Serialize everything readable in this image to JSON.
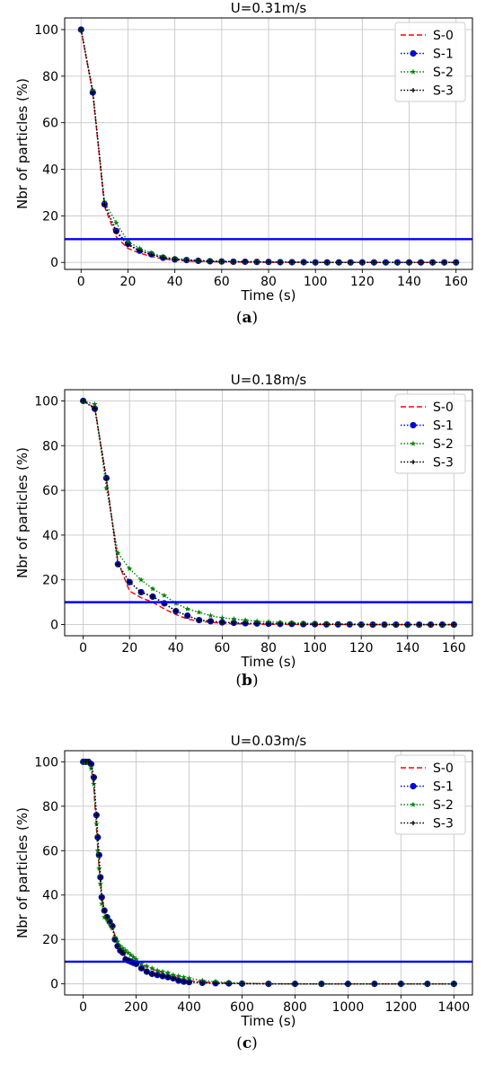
{
  "chart_data": [
    {
      "type": "line",
      "title": "U=0.31m/s",
      "xlabel": "Time (s)",
      "ylabel": "Nbr of particles (%)",
      "xlim": [
        -7,
        167
      ],
      "ylim": [
        -3,
        105
      ],
      "xticks": [
        0,
        20,
        40,
        60,
        80,
        100,
        120,
        140,
        160
      ],
      "yticks": [
        0,
        20,
        40,
        60,
        80,
        100
      ],
      "grid": true,
      "legend": "top-right",
      "threshold": 10,
      "caption": "a",
      "series": [
        {
          "name": "S-0",
          "color": "#ff0000",
          "style": "dashed",
          "marker": "none",
          "x": [
            0,
            5,
            10,
            15,
            20,
            25,
            30,
            35,
            40,
            45,
            50,
            60,
            70,
            80,
            100,
            120,
            140,
            160
          ],
          "y": [
            100,
            73,
            24,
            11,
            6,
            4,
            2.5,
            1.5,
            1,
            0.6,
            0.4,
            0.2,
            0.1,
            0,
            0,
            0,
            0,
            0
          ]
        },
        {
          "name": "S-1",
          "color": "#0000ff",
          "style": "dotted",
          "marker": "circle",
          "x": [
            0,
            5,
            10,
            15,
            20,
            25,
            30,
            35,
            40,
            45,
            50,
            55,
            60,
            65,
            70,
            75,
            80,
            85,
            90,
            95,
            100,
            105,
            110,
            115,
            120,
            125,
            130,
            135,
            140,
            145,
            150,
            155,
            160
          ],
          "y": [
            100,
            73,
            25,
            13.5,
            8,
            5,
            3.5,
            2,
            1.3,
            1,
            0.7,
            0.5,
            0.4,
            0.3,
            0.3,
            0.2,
            0.2,
            0.1,
            0.1,
            0.1,
            0,
            0,
            0,
            0,
            0,
            0,
            0,
            0,
            0,
            0,
            0,
            0,
            0
          ]
        },
        {
          "name": "S-2",
          "color": "#008000",
          "style": "dotted",
          "marker": "star",
          "x": [
            0,
            5,
            10,
            15,
            20,
            25,
            30,
            35,
            40,
            45,
            50,
            55,
            60,
            65,
            70,
            75,
            80,
            85,
            90,
            95,
            100,
            105,
            110,
            115,
            120,
            125,
            130,
            135,
            140,
            145,
            150,
            155,
            160
          ],
          "y": [
            100,
            74,
            26,
            17,
            9,
            6,
            4,
            2.5,
            1.6,
            1.2,
            0.9,
            0.7,
            0.5,
            0.4,
            0.3,
            0.3,
            0.2,
            0.2,
            0.1,
            0.1,
            0.1,
            0,
            0,
            0,
            0,
            0,
            0,
            0,
            0,
            0,
            0,
            0,
            0
          ]
        },
        {
          "name": "S-3",
          "color": "#000000",
          "style": "dotted",
          "marker": "plus",
          "x": [
            0,
            5,
            10,
            15,
            20,
            25,
            30,
            35,
            40,
            45,
            50,
            55,
            60,
            65,
            70,
            75,
            80,
            85,
            90,
            95,
            100,
            105,
            110,
            115,
            120,
            125,
            130,
            135,
            140,
            145,
            150,
            155,
            160
          ],
          "y": [
            100,
            73,
            25,
            13,
            7.5,
            5,
            3.3,
            2,
            1.3,
            1,
            0.7,
            0.5,
            0.4,
            0.3,
            0.3,
            0.2,
            0.2,
            0.1,
            0.1,
            0.1,
            0,
            0,
            0,
            0,
            0,
            0,
            0,
            0,
            0,
            0,
            0,
            0,
            0
          ]
        }
      ]
    },
    {
      "type": "line",
      "title": "U=0.18m/s",
      "xlabel": "Time (s)",
      "ylabel": "Nbr of particles (%)",
      "xlim": [
        -8,
        168
      ],
      "ylim": [
        -5,
        105
      ],
      "xticks": [
        0,
        20,
        40,
        60,
        80,
        100,
        120,
        140,
        160
      ],
      "yticks": [
        0,
        20,
        40,
        60,
        80,
        100
      ],
      "grid": true,
      "legend": "top-right",
      "threshold": 10,
      "caption": "b",
      "series": [
        {
          "name": "S-0",
          "color": "#ff0000",
          "style": "dashed",
          "marker": "none",
          "x": [
            0,
            5,
            10,
            15,
            20,
            25,
            30,
            35,
            40,
            45,
            50,
            55,
            60,
            70,
            80,
            100,
            120,
            140,
            160
          ],
          "y": [
            100,
            97,
            65,
            28,
            15,
            12,
            10,
            7,
            4.5,
            2.5,
            1.5,
            1,
            0.6,
            0.3,
            0.1,
            0,
            0,
            0,
            0
          ]
        },
        {
          "name": "S-1",
          "color": "#0000ff",
          "style": "dotted",
          "marker": "circle",
          "x": [
            0,
            5,
            10,
            15,
            20,
            25,
            30,
            35,
            40,
            45,
            50,
            55,
            60,
            65,
            70,
            75,
            80,
            85,
            90,
            95,
            100,
            105,
            110,
            115,
            120,
            125,
            130,
            135,
            140,
            145,
            150,
            155,
            160
          ],
          "y": [
            100,
            96.5,
            65.5,
            27,
            19,
            14.5,
            12.5,
            9.5,
            6,
            4,
            2,
            1.5,
            1,
            0.8,
            0.6,
            0.5,
            0.4,
            0.3,
            0.3,
            0.2,
            0.2,
            0.1,
            0.1,
            0.1,
            0,
            0,
            0,
            0,
            0,
            0,
            0,
            0,
            0
          ]
        },
        {
          "name": "S-2",
          "color": "#008000",
          "style": "dotted",
          "marker": "star",
          "x": [
            0,
            5,
            10,
            15,
            20,
            25,
            30,
            35,
            40,
            45,
            50,
            55,
            60,
            65,
            70,
            75,
            80,
            85,
            90,
            95,
            100,
            105,
            110,
            115,
            120,
            125,
            130,
            135,
            140,
            145,
            150,
            155,
            160
          ],
          "y": [
            100,
            98.5,
            61,
            32,
            25,
            20,
            16,
            13,
            9.5,
            7,
            5.5,
            4,
            3,
            2.5,
            2,
            1.5,
            1.2,
            1,
            0.8,
            0.6,
            0.5,
            0.4,
            0.3,
            0.3,
            0.2,
            0.2,
            0.1,
            0.1,
            0.1,
            0,
            0,
            0,
            0
          ]
        },
        {
          "name": "S-3",
          "color": "#000000",
          "style": "dotted",
          "marker": "plus",
          "x": [
            0,
            5,
            10,
            15,
            20,
            25,
            30,
            35,
            40,
            45,
            50,
            55,
            60,
            65,
            70,
            75,
            80,
            85,
            90,
            95,
            100,
            105,
            110,
            115,
            120,
            125,
            130,
            135,
            140,
            145,
            150,
            155,
            160
          ],
          "y": [
            100,
            96.5,
            65,
            27,
            19,
            14.5,
            12.5,
            9.5,
            6,
            4,
            2,
            1.5,
            1,
            0.8,
            0.6,
            0.5,
            0.4,
            0.3,
            0.3,
            0.2,
            0.2,
            0.1,
            0.1,
            0.1,
            0,
            0,
            0,
            0,
            0,
            0,
            0,
            0,
            0
          ]
        }
      ]
    },
    {
      "type": "line",
      "title": "U=0.03m/s",
      "xlabel": "Time (s)",
      "ylabel": "Nbr of particles (%)",
      "xlim": [
        -70,
        1470
      ],
      "ylim": [
        -5,
        105
      ],
      "xticks": [
        0,
        200,
        400,
        600,
        800,
        1000,
        1200,
        1400
      ],
      "yticks": [
        0,
        20,
        40,
        60,
        80,
        100
      ],
      "grid": true,
      "legend": "top-right",
      "threshold": 10,
      "caption": "c",
      "series": [
        {
          "name": "S-0",
          "color": "#ff0000",
          "style": "dashed",
          "marker": "none",
          "x": [
            0,
            20,
            30,
            40,
            50,
            60,
            70,
            80,
            90,
            100,
            120,
            140,
            160,
            180,
            200,
            250,
            300,
            350,
            400,
            450,
            500,
            600,
            800,
            1000,
            1200,
            1400
          ],
          "y": [
            100,
            100,
            98,
            88,
            70,
            52,
            40,
            33,
            30,
            28,
            22,
            16,
            12,
            11,
            10,
            7,
            5,
            3,
            1.5,
            0.8,
            0.4,
            0.1,
            0,
            0,
            0,
            0
          ]
        },
        {
          "name": "S-1",
          "color": "#0000ff",
          "style": "dotted",
          "marker": "circle",
          "x": [
            0,
            10,
            20,
            30,
            40,
            50,
            55,
            60,
            65,
            70,
            80,
            90,
            100,
            110,
            120,
            130,
            140,
            150,
            160,
            170,
            180,
            190,
            200,
            220,
            240,
            260,
            280,
            300,
            320,
            340,
            360,
            380,
            400,
            450,
            500,
            550,
            600,
            700,
            800,
            900,
            1000,
            1100,
            1200,
            1300,
            1400
          ],
          "y": [
            100,
            100,
            100,
            99,
            93,
            76,
            66,
            58,
            48,
            39,
            33,
            30,
            28,
            26,
            20,
            17,
            15,
            14,
            11,
            10.5,
            10,
            9.5,
            9,
            7,
            5.5,
            4.5,
            4,
            3.5,
            3,
            2.5,
            1.5,
            1,
            0.8,
            0.5,
            0.3,
            0.2,
            0.1,
            0,
            0,
            0,
            0,
            0,
            0,
            0,
            0
          ]
        },
        {
          "name": "S-2",
          "color": "#008000",
          "style": "dotted",
          "marker": "star",
          "x": [
            0,
            10,
            20,
            30,
            40,
            50,
            55,
            60,
            65,
            70,
            80,
            90,
            100,
            110,
            120,
            130,
            140,
            150,
            160,
            170,
            180,
            190,
            200,
            220,
            240,
            260,
            280,
            300,
            320,
            340,
            360,
            380,
            400,
            450,
            500,
            550,
            600,
            700,
            800,
            900,
            1000,
            1100,
            1200,
            1300,
            1400
          ],
          "y": [
            100,
            100,
            100,
            97,
            90,
            72,
            60,
            52,
            45,
            36,
            30,
            29,
            27,
            25,
            21,
            19,
            17,
            16,
            15,
            14,
            13,
            12,
            11,
            9,
            8,
            7,
            6,
            5.5,
            5,
            4,
            3.5,
            3,
            2.5,
            1.5,
            1,
            0.6,
            0.3,
            0.1,
            0,
            0,
            0,
            0,
            0,
            0,
            0
          ]
        },
        {
          "name": "S-3",
          "color": "#000000",
          "style": "dotted",
          "marker": "plus",
          "x": [
            0,
            10,
            20,
            30,
            40,
            50,
            55,
            60,
            65,
            70,
            80,
            90,
            100,
            110,
            120,
            130,
            140,
            150,
            160,
            170,
            180,
            190,
            200,
            220,
            240,
            260,
            280,
            300,
            320,
            340,
            360,
            380,
            400,
            450,
            500,
            550,
            600,
            700,
            800,
            900,
            1000,
            1100,
            1200,
            1300,
            1400
          ],
          "y": [
            100,
            100,
            100,
            99,
            93,
            76,
            66,
            58,
            48,
            39,
            33,
            30,
            28,
            26,
            20,
            17,
            15,
            14,
            11,
            10.5,
            10,
            9.5,
            9,
            7,
            5.5,
            4.5,
            4,
            3.5,
            3,
            2.5,
            1.5,
            1,
            0.8,
            0.5,
            0.3,
            0.2,
            0.1,
            0,
            0,
            0,
            0,
            0,
            0,
            0,
            0
          ]
        }
      ]
    }
  ]
}
